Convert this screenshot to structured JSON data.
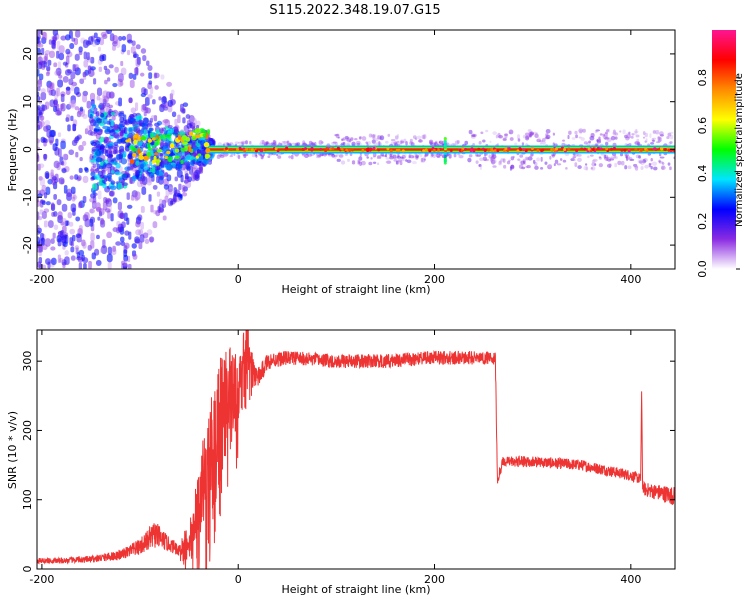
{
  "title": "S115.2022.348.19.07.G15",
  "chart_data": [
    {
      "type": "heatmap",
      "name": "spectrogram",
      "xlabel": "Height of straight line (km)",
      "ylabel": "Frequency (Hz)",
      "xlim": [
        -205,
        445
      ],
      "ylim": [
        -25,
        25
      ],
      "x_ticks": [
        -200,
        0,
        200,
        400
      ],
      "x_tick_labels": [
        "-200",
        "0",
        "200",
        "400"
      ],
      "y_ticks": [
        -20,
        -10,
        0,
        10,
        20
      ],
      "y_tick_labels": [
        "-20",
        "-10",
        "0",
        "10",
        "20"
      ],
      "colorbar": {
        "label": "Normalized spectral amplitude",
        "range": [
          0,
          1
        ],
        "ticks": [
          0.0,
          0.2,
          0.4,
          0.6,
          0.8
        ],
        "tick_labels": [
          "0.0",
          "0.2",
          "0.4",
          "0.6",
          "0.8"
        ],
        "colors": [
          "#ffffff",
          "#8a2be2",
          "#0000ff",
          "#00e5ff",
          "#00ff00",
          "#ffff00",
          "#ff8c00",
          "#ff0000",
          "#ff1493"
        ]
      },
      "regions": [
        {
          "x_range": [
            -205,
            -110
          ],
          "freq_spread_hz": 25,
          "amplitude": 0.15,
          "description": "broadband noise"
        },
        {
          "x_range": [
            -110,
            -30
          ],
          "freq_spread_hz": 8,
          "amplitude": 0.3
        },
        {
          "x_range": [
            -30,
            445
          ],
          "center_freq_hz": 0,
          "amplitude": 0.9
        },
        {
          "x_range": [
            100,
            190
          ],
          "center_freq_hz": 0,
          "amplitude": 0.6
        },
        {
          "x_range": [
            210,
            212
          ],
          "freq_spread_hz": 3,
          "amplitude": 0.4
        },
        {
          "x_range": [
            230,
            445
          ],
          "freq_spread_hz": 4,
          "amplitude": 0.12
        }
      ]
    },
    {
      "type": "line",
      "name": "snr",
      "color": "#ee3333",
      "xlabel": "Height of straight line (km)",
      "ylabel": "SNR (10 * v/v)",
      "xlim": [
        -205,
        445
      ],
      "ylim": [
        0,
        345
      ],
      "x_ticks": [
        -200,
        0,
        200,
        400
      ],
      "x_tick_labels": [
        "-200",
        "0",
        "200",
        "400"
      ],
      "y_ticks": [
        0,
        100,
        200,
        300
      ],
      "y_tick_labels": [
        "0",
        "100",
        "200",
        "300"
      ],
      "x": [
        -205,
        -180,
        -150,
        -120,
        -100,
        -85,
        -70,
        -60,
        -50,
        -40,
        -30,
        -20,
        -10,
        0,
        5,
        10,
        20,
        30,
        50,
        100,
        150,
        200,
        240,
        262,
        264,
        270,
        300,
        350,
        400,
        410,
        411,
        412,
        414,
        430,
        445
      ],
      "y": [
        12,
        12,
        14,
        20,
        32,
        50,
        35,
        28,
        45,
        100,
        170,
        230,
        270,
        260,
        280,
        300,
        275,
        300,
        305,
        300,
        300,
        305,
        305,
        305,
        130,
        155,
        155,
        150,
        135,
        130,
        255,
        120,
        115,
        110,
        105
      ],
      "noise_amplitude": [
        4,
        4,
        5,
        7,
        12,
        20,
        10,
        10,
        25,
        50,
        70,
        70,
        60,
        50,
        40,
        30,
        15,
        12,
        10,
        10,
        10,
        10,
        10,
        10,
        8,
        8,
        8,
        8,
        8,
        8,
        8,
        8,
        10,
        12,
        14
      ]
    }
  ]
}
